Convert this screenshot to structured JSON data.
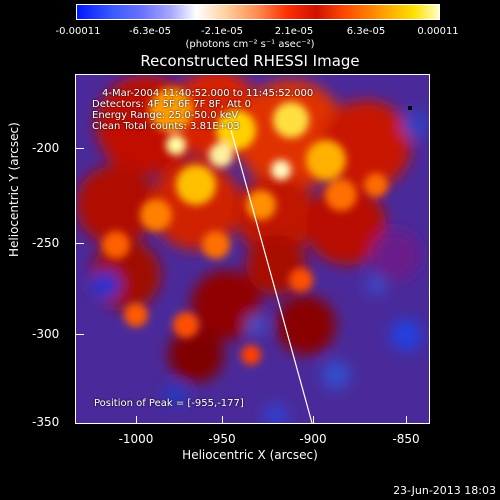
{
  "colorbar": {
    "ticks": [
      "-0.00011",
      "-6.3e-05",
      "-2.1e-05",
      "2.1e-05",
      "6.3e-05",
      "0.00011"
    ],
    "units": "(photons cm⁻² s⁻¹ asec⁻²)"
  },
  "title": "Reconstructed RHESSI Image",
  "info": {
    "time": "4-Mar-2004 11:40:52.000 to 11:45:52.000",
    "detectors": "Detectors: 4F 5F 6F 7F 8F, Att 0",
    "energy": "Energy Range: 25.0-50.0 keV",
    "clean": "Clean     Total counts: 3.81E+03",
    "peak": "Position of Peak = [-955,-177]"
  },
  "axes": {
    "x_label": "Heliocentric X (arcsec)",
    "y_label": "Heliocentric Y (arcsec)",
    "x_ticks": [
      "-1000",
      "-950",
      "-900",
      "-850"
    ],
    "y_ticks": [
      "-200",
      "-250",
      "-300",
      "-350"
    ],
    "x_range": [
      -1030,
      -837
    ],
    "y_range": [
      -352,
      -167
    ]
  },
  "timestamp": "23-Jun-2013 18:03",
  "colors": {
    "background": "#000000",
    "foreground": "#ffffff",
    "field": "#4a2a9a"
  }
}
